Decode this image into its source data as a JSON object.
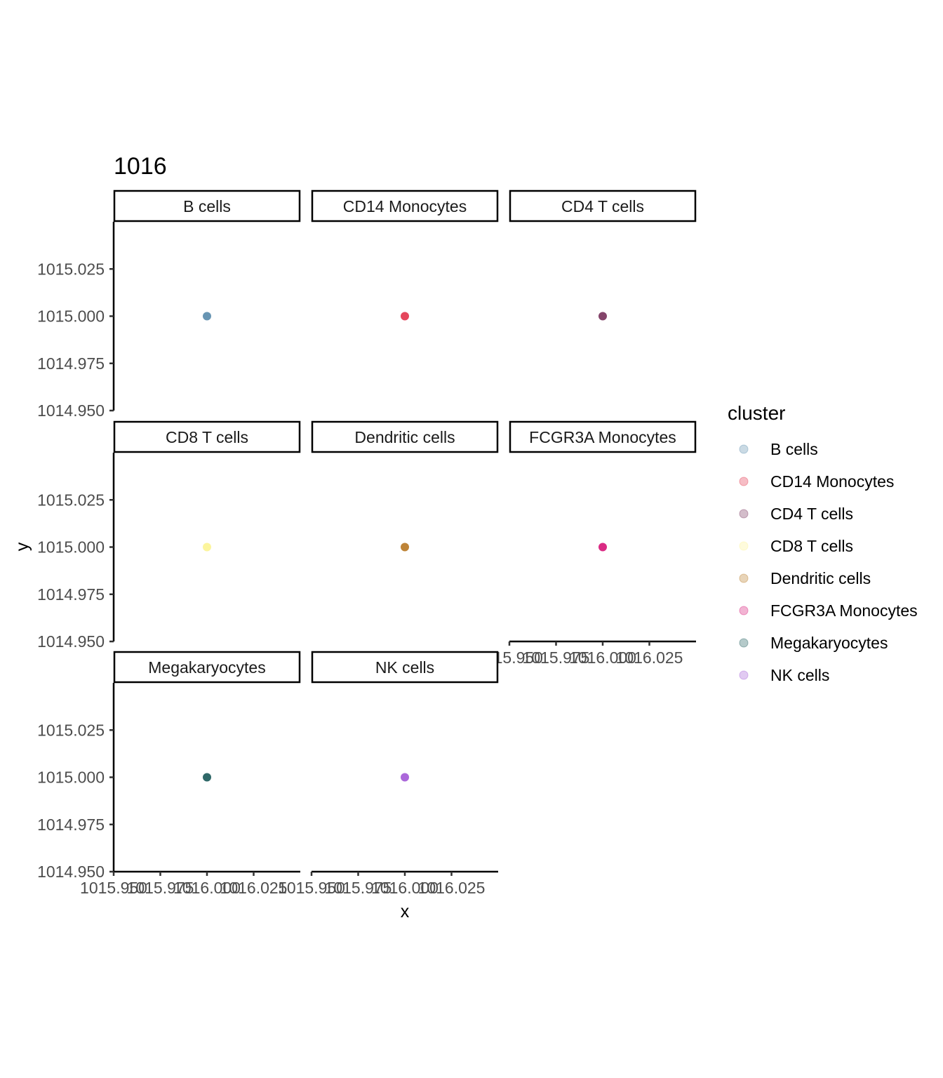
{
  "chart_data": {
    "type": "scatter",
    "title": "1016",
    "xlabel": "x",
    "ylabel": "y",
    "xlim": [
      1015.95,
      1016.05
    ],
    "ylim": [
      1014.95,
      1015.05
    ],
    "x_ticks": [
      1015.95,
      1015.975,
      1016.0,
      1016.025
    ],
    "x_tick_labels": [
      "1015.950",
      "1015.975",
      "1016.000",
      "1016.025"
    ],
    "y_ticks": [
      1014.95,
      1014.975,
      1015.0,
      1015.025
    ],
    "y_tick_labels": [
      "1014.950",
      "1014.975",
      "1015.000",
      "1015.025"
    ],
    "grid": false,
    "facets": [
      {
        "name": "B cells",
        "color": "#4e83a6",
        "points": [
          {
            "x": 1016.0,
            "y": 1015.0
          }
        ]
      },
      {
        "name": "CD14 Monocytes",
        "color": "#e0263f",
        "points": [
          {
            "x": 1016.0,
            "y": 1015.0
          }
        ]
      },
      {
        "name": "CD4 T cells",
        "color": "#6e2350",
        "points": [
          {
            "x": 1016.0,
            "y": 1015.0
          }
        ]
      },
      {
        "name": "CD8 T cells",
        "color": "#fbf38c",
        "points": [
          {
            "x": 1016.0,
            "y": 1015.0
          }
        ]
      },
      {
        "name": "Dendritic cells",
        "color": "#b36f14",
        "points": [
          {
            "x": 1016.0,
            "y": 1015.0
          }
        ]
      },
      {
        "name": "FCGR3A Monocytes",
        "color": "#d4066e",
        "points": [
          {
            "x": 1016.0,
            "y": 1015.0
          }
        ]
      },
      {
        "name": "Megakaryocytes",
        "color": "#0b4e4e",
        "points": [
          {
            "x": 1016.0,
            "y": 1015.0
          }
        ]
      },
      {
        "name": "NK cells",
        "color": "#9c4ed3",
        "points": [
          {
            "x": 1016.0,
            "y": 1015.0
          }
        ]
      }
    ],
    "legend": {
      "title": "cluster",
      "position": "right",
      "items": [
        "B cells",
        "CD14 Monocytes",
        "CD4 T cells",
        "CD8 T cells",
        "Dendritic cells",
        "FCGR3A Monocytes",
        "Megakaryocytes",
        "NK cells"
      ]
    }
  }
}
